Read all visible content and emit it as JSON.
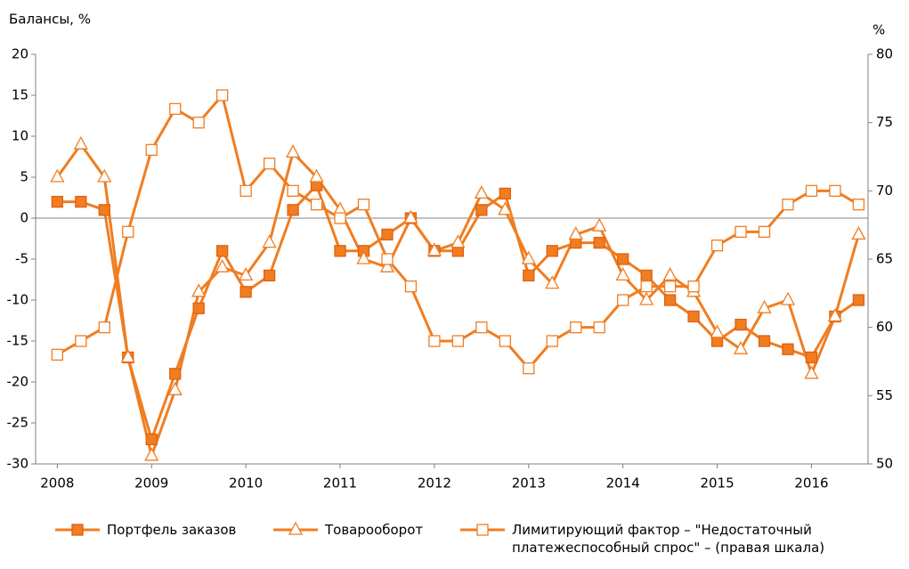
{
  "chart_data": {
    "type": "line",
    "ylabel": "Балансы, %",
    "y2label": "%",
    "x": [
      2008,
      2008.25,
      2008.5,
      2008.75,
      2009,
      2009.25,
      2009.5,
      2009.75,
      2010,
      2010.25,
      2010.5,
      2010.75,
      2011,
      2011.25,
      2011.5,
      2011.75,
      2012,
      2012.25,
      2012.5,
      2012.75,
      2013,
      2013.25,
      2013.5,
      2013.75,
      2014,
      2014.25,
      2014.5,
      2014.75,
      2015,
      2015.25,
      2015.5,
      2015.75,
      2016,
      2016.25,
      2016.5
    ],
    "xlim": [
      2007.77,
      2016.6
    ],
    "xticks": [
      2008,
      2009,
      2010,
      2011,
      2012,
      2013,
      2014,
      2015,
      2016
    ],
    "ylim": [
      -30,
      20
    ],
    "yticks": [
      -30,
      -25,
      -20,
      -15,
      -10,
      -5,
      0,
      5,
      10,
      15,
      20
    ],
    "y2lim": [
      50,
      80
    ],
    "y2ticks": [
      50,
      55,
      60,
      65,
      70,
      75,
      80
    ],
    "series": [
      {
        "name": "Портфель заказов",
        "color": "#f07d20",
        "marker": "square-filled",
        "values": [
          2,
          2,
          1,
          -17,
          -27,
          -19,
          -11,
          -4,
          -9,
          -7,
          1,
          4,
          -4,
          -4,
          -2,
          0,
          -4,
          -4,
          1,
          3,
          -7,
          -4,
          -3,
          -3,
          -5,
          -7,
          -10,
          -12,
          -15,
          -13,
          -15,
          -16,
          -17,
          -12,
          -10
        ]
      },
      {
        "name": "Товарооборот",
        "color": "#f07d20",
        "marker": "triangle",
        "values": [
          5,
          9,
          5,
          -17,
          -29,
          -21,
          -9,
          -6,
          -7,
          -3,
          8,
          5,
          1,
          -5,
          -6,
          0,
          -4,
          -3,
          3,
          1,
          -5,
          -8,
          -2,
          -1,
          -7,
          -10,
          -7,
          -9,
          -14,
          -16,
          -11,
          -10,
          -19,
          -12,
          -2
        ]
      },
      {
        "name": "Лимитирующий фактор – \"Недостаточный\nплатежеспособный спрос\" – (правая шкала)",
        "color": "#f07d20",
        "marker": "square-open",
        "axis": "y2",
        "values": [
          58,
          59,
          60,
          67,
          73,
          76,
          75,
          77,
          70,
          72,
          70,
          69,
          68,
          69,
          65,
          63,
          59,
          59,
          60,
          59,
          57,
          59,
          60,
          60,
          62,
          63,
          63,
          63,
          66,
          67,
          67,
          69,
          70,
          70,
          69
        ]
      }
    ]
  }
}
